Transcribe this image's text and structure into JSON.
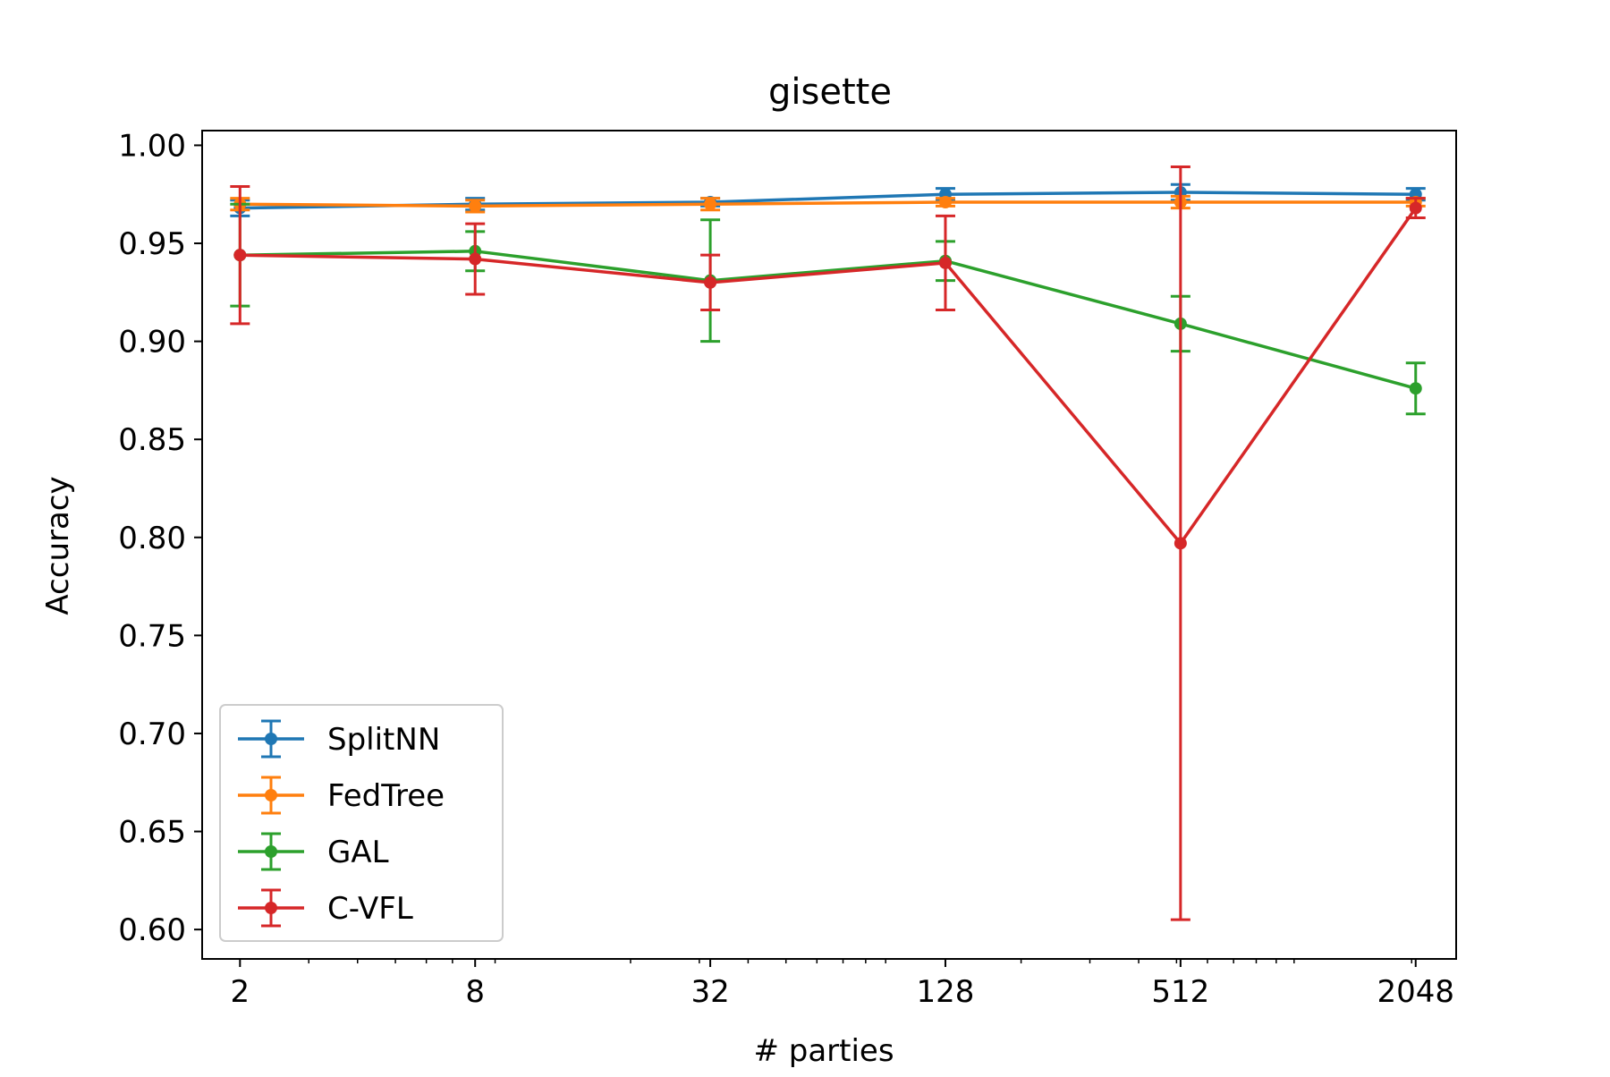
{
  "chart_data": {
    "type": "line",
    "title": "gisette",
    "xlabel": "# parties",
    "ylabel": "Accuracy",
    "x_scale": "log2",
    "x": [
      2,
      8,
      32,
      128,
      512,
      2048
    ],
    "x_tick_labels": [
      "2",
      "8",
      "32",
      "128",
      "512",
      "2048"
    ],
    "xlim": [
      1.6,
      2600
    ],
    "ylim": [
      0.585,
      1.0075
    ],
    "y_ticks": [
      0.6,
      0.65,
      0.7,
      0.75,
      0.8,
      0.85,
      0.9,
      0.95,
      1.0
    ],
    "y_tick_labels": [
      "0.60",
      "0.65",
      "0.70",
      "0.75",
      "0.80",
      "0.85",
      "0.90",
      "0.95",
      "1.00"
    ],
    "grid": false,
    "legend_position": "lower-left",
    "series": [
      {
        "name": "SplitNN",
        "color": "#1f77b4",
        "values": [
          0.968,
          0.97,
          0.971,
          0.975,
          0.976,
          0.975
        ],
        "errors": [
          0.004,
          0.003,
          0.002,
          0.003,
          0.004,
          0.003
        ]
      },
      {
        "name": "FedTree",
        "color": "#ff7f0e",
        "values": [
          0.97,
          0.969,
          0.97,
          0.971,
          0.971,
          0.971
        ],
        "errors": [
          0.003,
          0.003,
          0.003,
          0.002,
          0.003,
          0.002
        ]
      },
      {
        "name": "GAL",
        "color": "#2ca02c",
        "values": [
          0.944,
          0.946,
          0.931,
          0.941,
          0.909,
          0.876
        ],
        "errors": [
          0.026,
          0.01,
          0.031,
          0.01,
          0.014,
          0.013
        ]
      },
      {
        "name": "C-VFL",
        "color": "#d62728",
        "values": [
          0.944,
          0.942,
          0.93,
          0.94,
          0.797,
          0.968
        ],
        "errors": [
          0.035,
          0.018,
          0.014,
          0.024,
          0.192,
          0.005
        ]
      }
    ]
  }
}
